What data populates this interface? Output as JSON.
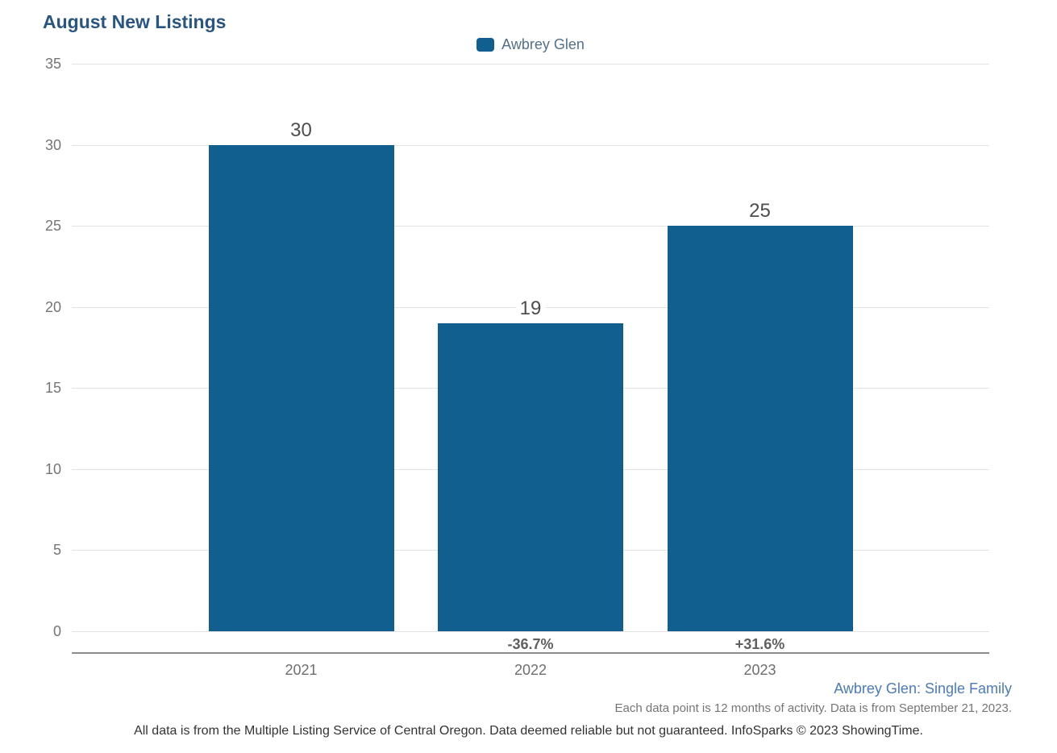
{
  "title": "August New Listings",
  "legend": {
    "label": "Awbrey Glen",
    "swatch_color": "#105F8E"
  },
  "chart_data": {
    "type": "bar",
    "title": "August New Listings",
    "categories": [
      "2021",
      "2022",
      "2023"
    ],
    "series": [
      {
        "name": "Awbrey Glen",
        "values": [
          30,
          19,
          25
        ],
        "color": "#105F8E"
      }
    ],
    "bar_value_labels": [
      "30",
      "19",
      "25"
    ],
    "pct_change_labels": [
      "",
      "-36.7%",
      "+31.6%"
    ],
    "xlabel": "",
    "ylabel": "",
    "ylim": [
      0,
      35
    ],
    "yticks": [
      0,
      5,
      10,
      15,
      20,
      25,
      30,
      35
    ],
    "grid": true,
    "legend_position": "top-center"
  },
  "footer": {
    "series_note": "Awbrey Glen: Single Family",
    "data_note": "Each data point is 12 months of activity. Data is from September 21, 2023.",
    "disclaimer": "All data is from the Multiple Listing Service of Central Oregon. Data deemed reliable but not guaranteed. InfoSparks © 2023 ShowingTime."
  },
  "colors": {
    "bar": "#105F8E",
    "title": "#2A5580",
    "legend_text": "#54708C",
    "value_label": "#4D4D4D",
    "pct_label": "#5F5F5F",
    "tick_label": "#757575",
    "gridline": "#E2E2E2",
    "axis_line": "#8C8C8C",
    "series_note": "#4D7BB5",
    "disclaimer": "#333333"
  }
}
